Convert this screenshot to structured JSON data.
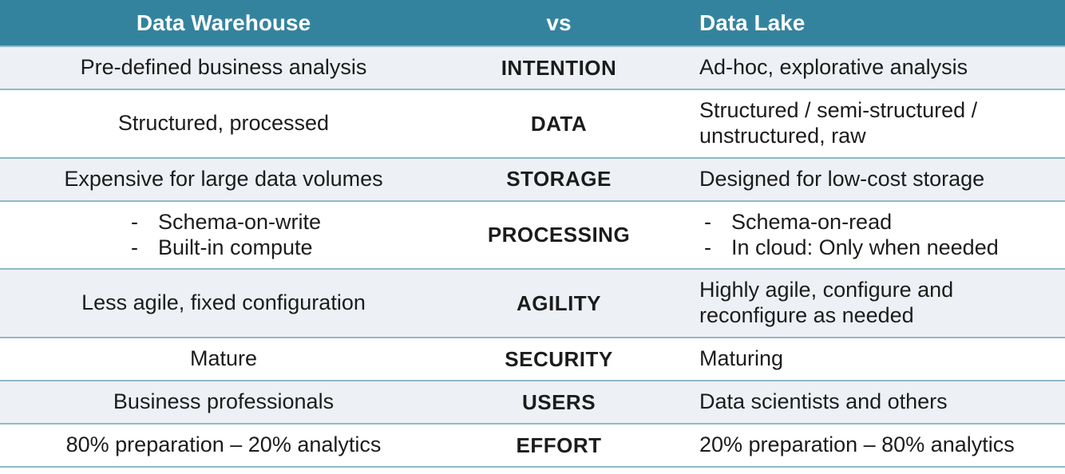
{
  "table": {
    "header": {
      "col1": "Data Warehouse",
      "col2": "vs",
      "col3": "Data Lake"
    },
    "rows": [
      {
        "label": "INTENTION",
        "warehouse": "Pre-defined business analysis",
        "lake": "Ad-hoc, explorative analysis"
      },
      {
        "label": "DATA",
        "warehouse": "Structured, processed",
        "lake": "Structured / semi-structured / unstructured, raw"
      },
      {
        "label": "STORAGE",
        "warehouse": "Expensive for large data volumes",
        "lake": "Designed for low-cost storage"
      },
      {
        "label": "PROCESSING",
        "warehouse_list": [
          "Schema-on-write",
          "Built-in compute"
        ],
        "lake_list": [
          "Schema-on-read",
          "In cloud: Only when needed"
        ]
      },
      {
        "label": "AGILITY",
        "warehouse": "Less agile, fixed configuration",
        "lake": "Highly agile, configure and reconfigure as needed"
      },
      {
        "label": "SECURITY",
        "warehouse": "Mature",
        "lake": "Maturing"
      },
      {
        "label": "USERS",
        "warehouse": "Business professionals",
        "lake": "Data scientists and others"
      },
      {
        "label": "EFFORT",
        "warehouse": "80% preparation – 20% analytics",
        "lake": "20% preparation – 80% analytics"
      }
    ],
    "bullet_glyph": "-",
    "colors": {
      "header_bg": "#34839e",
      "header_text": "#ffffff",
      "row_bg": "#ffffff",
      "row_alt_bg": "#edf1f5",
      "divider": "#8fb9c9",
      "text": "#1c1c1c"
    }
  }
}
